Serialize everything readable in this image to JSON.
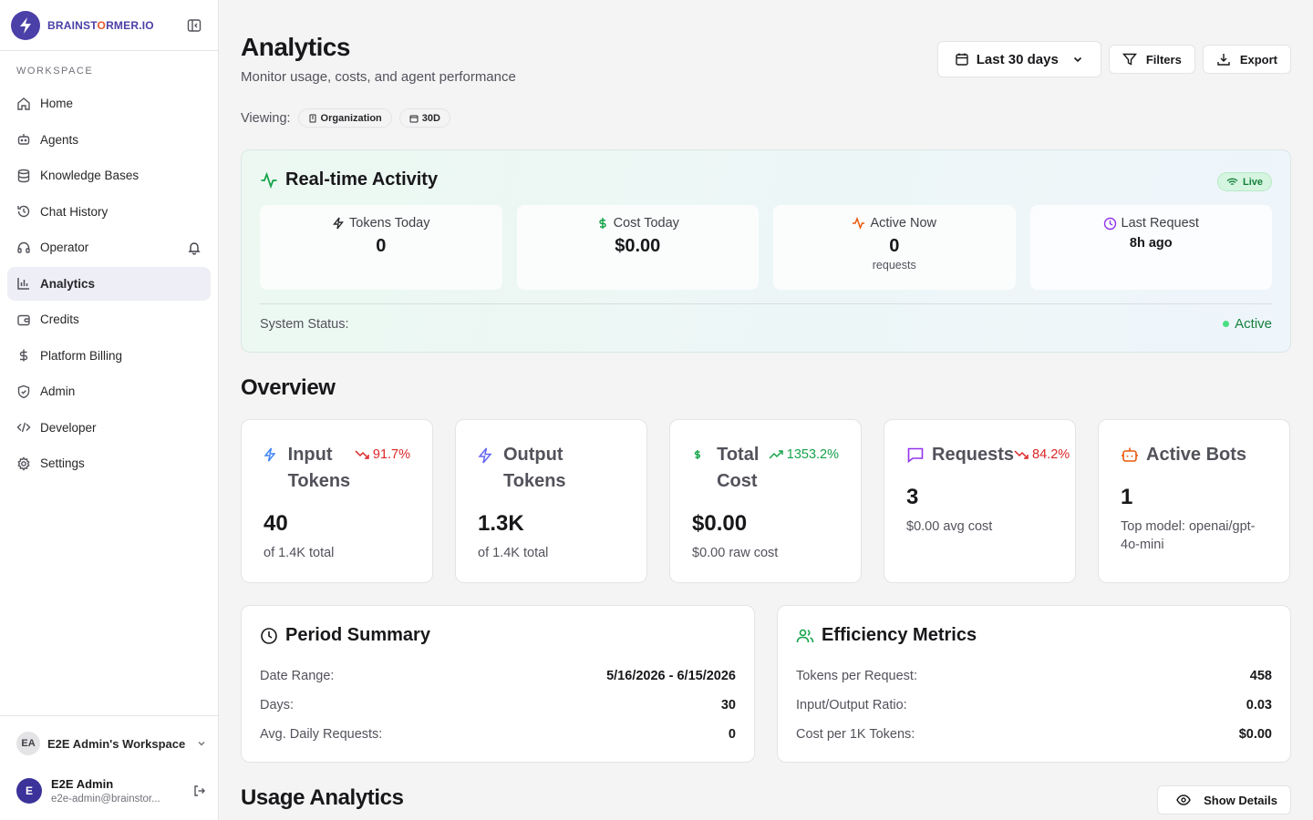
{
  "sidebar": {
    "brand": {
      "name_part1": "BRAINST",
      "name_part2": "O",
      "name_part3": "RMER.IO"
    },
    "section_label": "WORKSPACE",
    "items": [
      {
        "label": "Home",
        "icon": "home-icon"
      },
      {
        "label": "Agents",
        "icon": "bot-icon"
      },
      {
        "label": "Knowledge Bases",
        "icon": "database-icon"
      },
      {
        "label": "Chat History",
        "icon": "history-icon"
      },
      {
        "label": "Operator",
        "icon": "headset-icon"
      },
      {
        "label": "Analytics",
        "icon": "bar-chart-icon",
        "active": true
      },
      {
        "label": "Credits",
        "icon": "wallet-icon"
      },
      {
        "label": "Platform Billing",
        "icon": "dollar-icon"
      },
      {
        "label": "Admin",
        "icon": "shield-icon"
      },
      {
        "label": "Developer",
        "icon": "code-icon"
      },
      {
        "label": "Settings",
        "icon": "gear-icon"
      }
    ],
    "workspace": {
      "initials": "EA",
      "name": "E2E Admin's Workspace"
    },
    "user": {
      "initial": "E",
      "name": "E2E Admin",
      "email": "e2e-admin@brainstor..."
    }
  },
  "header": {
    "title": "Analytics",
    "subtitle": "Monitor usage, costs, and agent performance",
    "date_range_label": "Last 30 days",
    "filters_label": "Filters",
    "export_label": "Export",
    "viewing_label": "Viewing:",
    "chips": [
      "Organization",
      "30D"
    ]
  },
  "realtime": {
    "title": "Real-time Activity",
    "live_label": "Live",
    "cards": [
      {
        "label": "Tokens Today",
        "value": "0",
        "sub": "",
        "icon": "zap-icon",
        "color": "#27272a"
      },
      {
        "label": "Cost Today",
        "value": "$0.00",
        "sub": "",
        "icon": "dollar-icon",
        "color": "#16a34a"
      },
      {
        "label": "Active Now",
        "value": "0",
        "sub": "requests",
        "icon": "activity-icon",
        "color": "#ea580c"
      },
      {
        "label": "Last Request",
        "value": "8h ago",
        "sub": "",
        "icon": "clock-icon",
        "color": "#9333ea"
      }
    ],
    "system_status_label": "System Status:",
    "system_status_value": "Active"
  },
  "overview": {
    "title": "Overview",
    "cards": [
      {
        "name": "Input Tokens",
        "change": "91.7%",
        "trend": "down",
        "value": "40",
        "sub": "of 1.4K total",
        "icon": "zap-icon",
        "icon_color": "#3b82f6"
      },
      {
        "name": "Output Tokens",
        "change": "",
        "trend": "",
        "value": "1.3K",
        "sub": "of 1.4K total",
        "icon": "zap-icon",
        "icon_color": "#6366f1"
      },
      {
        "name": "Total Cost",
        "change": "1353.2%",
        "trend": "up",
        "value": "$0.00",
        "sub": "$0.00 raw cost",
        "icon": "dollar-icon",
        "icon_color": "#16a34a"
      },
      {
        "name": "Requests",
        "change": "84.2%",
        "trend": "down",
        "value": "3",
        "sub": "$0.00 avg cost",
        "icon": "message-icon",
        "icon_color": "#9333ea"
      },
      {
        "name": "Active Bots",
        "change": "",
        "trend": "",
        "value": "1",
        "sub": "Top model: openai/gpt-4o-mini",
        "icon": "bot-icon",
        "icon_color": "#ea580c"
      }
    ]
  },
  "period_summary": {
    "title": "Period Summary",
    "rows": [
      {
        "k": "Date Range:",
        "v": "5/16/2026 - 6/15/2026"
      },
      {
        "k": "Days:",
        "v": "30"
      },
      {
        "k": "Avg. Daily Requests:",
        "v": "0"
      }
    ]
  },
  "efficiency": {
    "title": "Efficiency Metrics",
    "rows": [
      {
        "k": "Tokens per Request:",
        "v": "458"
      },
      {
        "k": "Input/Output Ratio:",
        "v": "0.03"
      },
      {
        "k": "Cost per 1K Tokens:",
        "v": "$0.00"
      }
    ]
  },
  "usage": {
    "title": "Usage Analytics",
    "show_details_label": "Show Details"
  }
}
